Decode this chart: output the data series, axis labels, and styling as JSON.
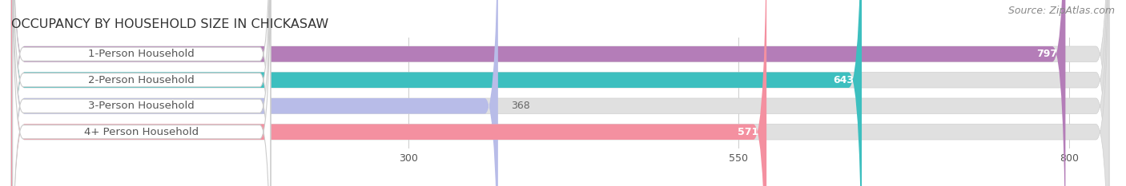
{
  "title": "OCCUPANCY BY HOUSEHOLD SIZE IN CHICKASAW",
  "source": "Source: ZipAtlas.com",
  "categories": [
    "1-Person Household",
    "2-Person Household",
    "3-Person Household",
    "4+ Person Household"
  ],
  "values": [
    797,
    643,
    368,
    571
  ],
  "bar_colors": [
    "#b47db8",
    "#3dbfbf",
    "#b8bce8",
    "#f490a0"
  ],
  "label_text_color": "#555555",
  "value_text_color_inside": "#ffffff",
  "value_text_color_outside": "#666666",
  "data_max": 830,
  "xticks": [
    300,
    550,
    800
  ],
  "background_color": "#ffffff",
  "bar_background_color": "#e0e0e0",
  "title_fontsize": 11.5,
  "source_fontsize": 9,
  "label_fontsize": 9.5,
  "value_fontsize": 9,
  "tick_fontsize": 9,
  "bar_height": 0.6,
  "value_inside_threshold": 450
}
